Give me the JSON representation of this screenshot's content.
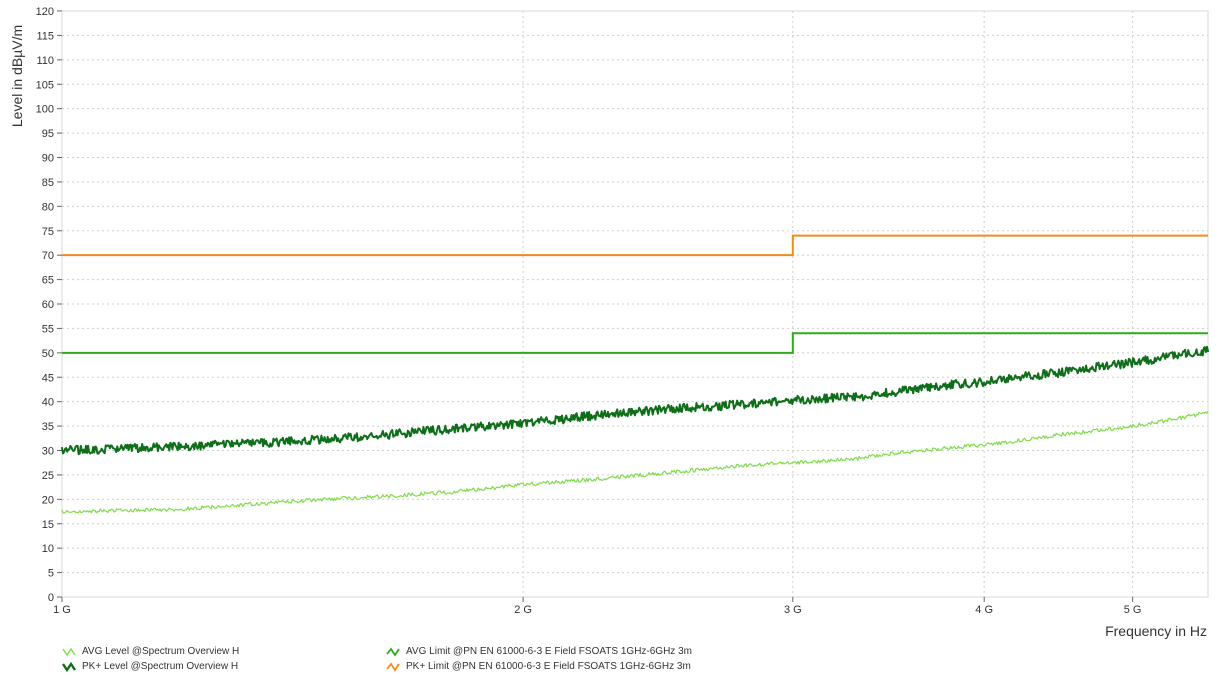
{
  "chart_data": {
    "type": "line",
    "xscale": "log",
    "xlim": [
      1000000000,
      5600000000
    ],
    "ylim": [
      0,
      120
    ],
    "xlabel": "Frequency in Hz",
    "ylabel": "Level in dBµV/m",
    "yticks": [
      0,
      5,
      10,
      15,
      20,
      25,
      30,
      35,
      40,
      45,
      50,
      55,
      60,
      65,
      70,
      75,
      80,
      85,
      90,
      95,
      100,
      105,
      110,
      115,
      120
    ],
    "xticks": [
      {
        "value": 1000000000,
        "label": "1 G"
      },
      {
        "value": 2000000000,
        "label": "2 G"
      },
      {
        "value": 3000000000,
        "label": "3 G"
      },
      {
        "value": 4000000000,
        "label": "4 G"
      },
      {
        "value": 5000000000,
        "label": "5 G"
      }
    ],
    "grid": true,
    "series": [
      {
        "name": "PK+ Limit @PN EN 61000-6-3 E Field   FSOATS 1GHz-6GHz 3m",
        "color": "#f08c1e",
        "points": [
          [
            1000000000,
            70
          ],
          [
            3000000000,
            70
          ],
          [
            3000000000,
            74
          ],
          [
            5600000000,
            74
          ]
        ]
      },
      {
        "name": "AVG Limit @PN EN 61000-6-3 E Field   FSOATS 1GHz-6GHz 3m",
        "color": "#2eaa1c",
        "points": [
          [
            1000000000,
            50
          ],
          [
            3000000000,
            50
          ],
          [
            3000000000,
            54
          ],
          [
            5600000000,
            54
          ]
        ]
      },
      {
        "name": "PK+ Level @Spectrum Overview H",
        "color": "#0f6e1a",
        "points": [
          [
            1000000000,
            30
          ],
          [
            1200000000,
            30.8
          ],
          [
            1400000000,
            31.8
          ],
          [
            1600000000,
            33
          ],
          [
            1800000000,
            34.5
          ],
          [
            2000000000,
            35.5
          ],
          [
            2200000000,
            37
          ],
          [
            2500000000,
            38.5
          ],
          [
            2800000000,
            39.5
          ],
          [
            3000000000,
            40.3
          ],
          [
            3300000000,
            41
          ],
          [
            3500000000,
            42
          ],
          [
            3800000000,
            43.5
          ],
          [
            4000000000,
            44
          ],
          [
            4200000000,
            45
          ],
          [
            4500000000,
            46
          ],
          [
            4800000000,
            47.3
          ],
          [
            5000000000,
            48
          ],
          [
            5300000000,
            49.3
          ],
          [
            5600000000,
            50.5
          ]
        ]
      },
      {
        "name": "AVG Level @Spectrum Overview H",
        "color": "#7fdc4a",
        "points": [
          [
            1000000000,
            17.5
          ],
          [
            1200000000,
            18
          ],
          [
            1400000000,
            19.5
          ],
          [
            1600000000,
            20.5
          ],
          [
            1800000000,
            21.5
          ],
          [
            2000000000,
            23
          ],
          [
            2200000000,
            24
          ],
          [
            2500000000,
            25.5
          ],
          [
            2800000000,
            27
          ],
          [
            3000000000,
            27.5
          ],
          [
            3300000000,
            28.3
          ],
          [
            3500000000,
            29.5
          ],
          [
            3800000000,
            30.5
          ],
          [
            4000000000,
            31.2
          ],
          [
            4200000000,
            32
          ],
          [
            4500000000,
            33.3
          ],
          [
            4800000000,
            34.3
          ],
          [
            5000000000,
            35
          ],
          [
            5300000000,
            36.3
          ],
          [
            5600000000,
            37.8
          ]
        ]
      }
    ],
    "legend": [
      {
        "label": "AVG Level @Spectrum Overview H",
        "color": "#7fdc4a"
      },
      {
        "label": "PK+ Level @Spectrum Overview H",
        "color": "#0f6e1a"
      },
      {
        "label": "AVG Limit @PN EN 61000-6-3 E Field   FSOATS 1GHz-6GHz 3m",
        "color": "#2eaa1c"
      },
      {
        "label": "PK+ Limit @PN EN 61000-6-3 E Field   FSOATS 1GHz-6GHz 3m",
        "color": "#f08c1e"
      }
    ],
    "legend_position": "bottom-left"
  }
}
